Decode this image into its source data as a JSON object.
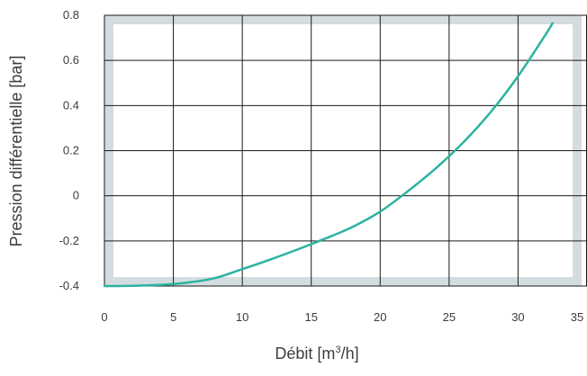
{
  "chart_data": {
    "type": "line",
    "title": "",
    "xlabel": "Débit [m³/h]",
    "xlabel_parts": {
      "pre": "Débit [m",
      "sup": "3",
      "post": "/h]"
    },
    "ylabel": "Pression différentielle [bar]",
    "xlim": [
      0,
      35
    ],
    "ylim": [
      -0.4,
      0.8
    ],
    "x_ticks": [
      0,
      5,
      10,
      15,
      20,
      25,
      30,
      35
    ],
    "x_tick_labels": [
      "0",
      "5",
      "10",
      "15",
      "20",
      "25",
      "30",
      "35"
    ],
    "y_ticks": [
      -0.4,
      -0.2,
      0,
      0.2,
      0.4,
      0.6,
      0.8
    ],
    "y_tick_labels": [
      "-0.4",
      "-0.2",
      "0",
      "0.2",
      "0.4",
      "0.6",
      "0.8"
    ],
    "grid": true,
    "colors": {
      "line": "#2bb3a0",
      "grid": "#1a1a1a",
      "band": "#d3dde0",
      "text": "#3c3c3c"
    },
    "series": [
      {
        "points": [
          [
            0,
            -0.4
          ],
          [
            2,
            -0.399
          ],
          [
            4,
            -0.395
          ],
          [
            6,
            -0.385
          ],
          [
            8,
            -0.365
          ],
          [
            10,
            -0.325
          ],
          [
            12,
            -0.283
          ],
          [
            14,
            -0.238
          ],
          [
            16,
            -0.19
          ],
          [
            18,
            -0.138
          ],
          [
            20,
            -0.07
          ],
          [
            22,
            0.02
          ],
          [
            24,
            0.12
          ],
          [
            26,
            0.235
          ],
          [
            28,
            0.37
          ],
          [
            30,
            0.53
          ],
          [
            32,
            0.715
          ],
          [
            32.5,
            0.765
          ]
        ]
      }
    ]
  }
}
